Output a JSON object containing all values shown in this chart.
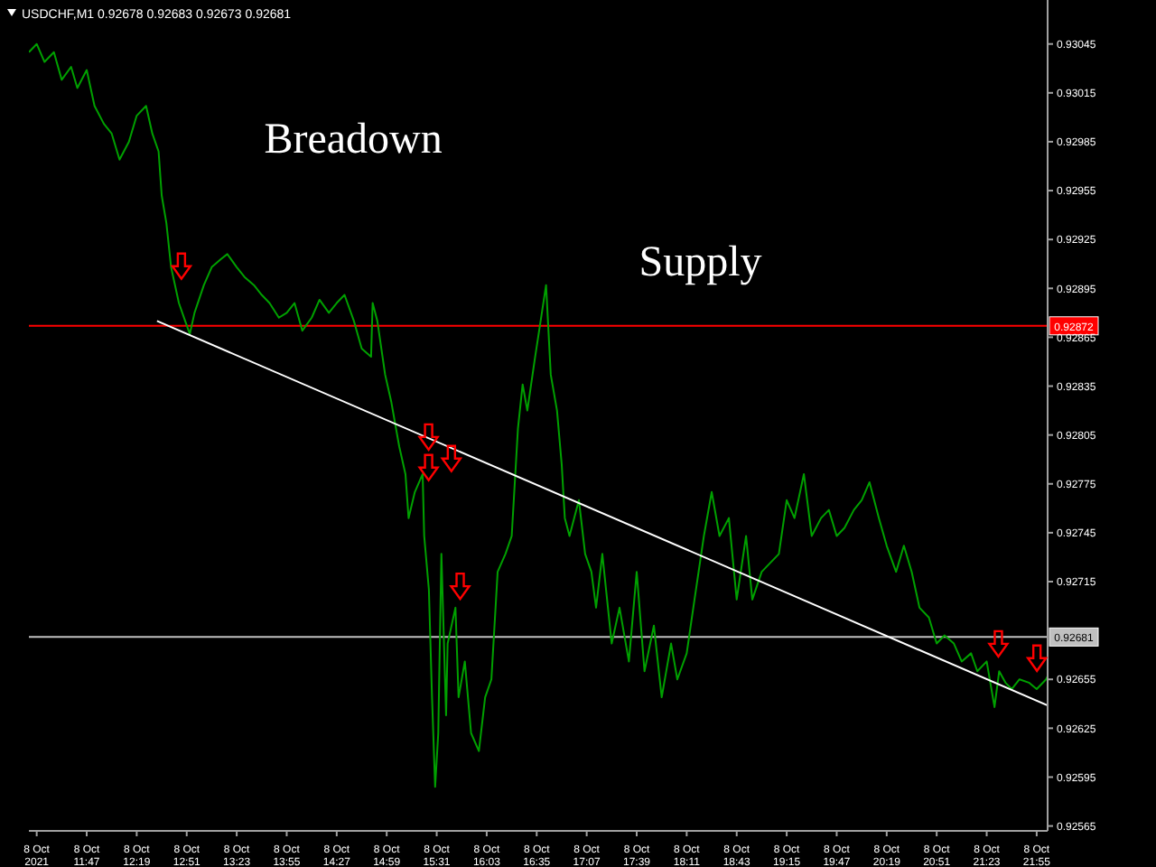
{
  "chart_data": {
    "type": "line",
    "title": "USDCHF,M1  0.92678 0.92683 0.92673 0.92681",
    "annotations": [
      "Breadown",
      "Supply"
    ],
    "xlim": [
      "2021-10-08T11:10",
      "2021-10-08T22:02"
    ],
    "xticks": [
      {
        "value": "2021-10-08T11:15",
        "label": "8 Oct 2021"
      },
      {
        "value": "2021-10-08T11:47",
        "label": "8 Oct 11:47"
      },
      {
        "value": "2021-10-08T12:19",
        "label": "8 Oct 12:19"
      },
      {
        "value": "2021-10-08T12:51",
        "label": "8 Oct 12:51"
      },
      {
        "value": "2021-10-08T13:23",
        "label": "8 Oct 13:23"
      },
      {
        "value": "2021-10-08T13:55",
        "label": "8 Oct 13:55"
      },
      {
        "value": "2021-10-08T14:27",
        "label": "8 Oct 14:27"
      },
      {
        "value": "2021-10-08T14:59",
        "label": "8 Oct 14:59"
      },
      {
        "value": "2021-10-08T15:31",
        "label": "8 Oct 15:31"
      },
      {
        "value": "2021-10-08T16:03",
        "label": "8 Oct 16:03"
      },
      {
        "value": "2021-10-08T16:35",
        "label": "8 Oct 16:35"
      },
      {
        "value": "2021-10-08T17:07",
        "label": "8 Oct 17:07"
      },
      {
        "value": "2021-10-08T17:39",
        "label": "8 Oct 17:39"
      },
      {
        "value": "2021-10-08T18:11",
        "label": "8 Oct 18:11"
      },
      {
        "value": "2021-10-08T18:43",
        "label": "8 Oct 18:43"
      },
      {
        "value": "2021-10-08T19:15",
        "label": "8 Oct 19:15"
      },
      {
        "value": "2021-10-08T19:47",
        "label": "8 Oct 19:47"
      },
      {
        "value": "2021-10-08T20:19",
        "label": "8 Oct 20:19"
      },
      {
        "value": "2021-10-08T20:51",
        "label": "8 Oct 20:51"
      },
      {
        "value": "2021-10-08T21:23",
        "label": "8 Oct 21:23"
      },
      {
        "value": "2021-10-08T21:55",
        "label": "8 Oct 21:55"
      }
    ],
    "ylim": [
      0.92562,
      0.93072
    ],
    "yticks": [
      0.93045,
      0.93015,
      0.92985,
      0.92955,
      0.92925,
      0.92895,
      0.92865,
      0.92835,
      0.92805,
      0.92775,
      0.92745,
      0.92715,
      0.92655,
      0.92625,
      0.92595,
      0.92565
    ],
    "grid": false,
    "legend": false,
    "marker": "none",
    "line_style": "solid",
    "ref_lines": [
      {
        "axis": "y",
        "value": 0.92872,
        "label": "0.92872",
        "color": "#ff0000"
      },
      {
        "axis": "y",
        "value": 0.92681,
        "label": "0.92681",
        "color": "#c0c0c0"
      }
    ],
    "series": [
      {
        "color": "#00a000",
        "x": [
          "2021-10-08T11:10",
          "2021-10-08T11:15",
          "2021-10-08T11:20",
          "2021-10-08T11:26",
          "2021-10-08T11:31",
          "2021-10-08T11:37",
          "2021-10-08T11:41",
          "2021-10-08T11:47",
          "2021-10-08T11:52",
          "2021-10-08T11:58",
          "2021-10-08T12:03",
          "2021-10-08T12:08",
          "2021-10-08T12:14",
          "2021-10-08T12:19",
          "2021-10-08T12:25",
          "2021-10-08T12:29",
          "2021-10-08T12:33",
          "2021-10-08T12:35",
          "2021-10-08T12:38",
          "2021-10-08T12:41",
          "2021-10-08T12:46",
          "2021-10-08T12:50",
          "2021-10-08T12:53",
          "2021-10-08T12:56",
          "2021-10-08T13:02",
          "2021-10-08T13:07",
          "2021-10-08T13:13",
          "2021-10-08T13:17",
          "2021-10-08T13:23",
          "2021-10-08T13:28",
          "2021-10-08T13:34",
          "2021-10-08T13:39",
          "2021-10-08T13:44",
          "2021-10-08T13:50",
          "2021-10-08T13:55",
          "2021-10-08T14:00",
          "2021-10-08T14:05",
          "2021-10-08T14:11",
          "2021-10-08T14:16",
          "2021-10-08T14:22",
          "2021-10-08T14:27",
          "2021-10-08T14:32",
          "2021-10-08T14:38",
          "2021-10-08T14:43",
          "2021-10-08T14:49",
          "2021-10-08T14:50",
          "2021-10-08T14:53",
          "2021-10-08T14:58",
          "2021-10-08T15:02",
          "2021-10-08T15:07",
          "2021-10-08T15:11",
          "2021-10-08T15:13",
          "2021-10-08T15:17",
          "2021-10-08T15:22",
          "2021-10-08T15:23",
          "2021-10-08T15:26",
          "2021-10-08T15:28",
          "2021-10-08T15:30",
          "2021-10-08T15:32",
          "2021-10-08T15:34",
          "2021-10-08T15:37",
          "2021-10-08T15:38",
          "2021-10-08T15:43",
          "2021-10-08T15:45",
          "2021-10-08T15:49",
          "2021-10-08T15:53",
          "2021-10-08T15:58",
          "2021-10-08T16:02",
          "2021-10-08T16:06",
          "2021-10-08T16:10",
          "2021-10-08T16:15",
          "2021-10-08T16:19",
          "2021-10-08T16:23",
          "2021-10-08T16:26",
          "2021-10-08T16:29",
          "2021-10-08T16:34",
          "2021-10-08T16:38",
          "2021-10-08T16:41",
          "2021-10-08T16:44",
          "2021-10-08T16:48",
          "2021-10-08T16:51",
          "2021-10-08T16:53",
          "2021-10-08T16:56",
          "2021-10-08T17:02",
          "2021-10-08T17:06",
          "2021-10-08T17:10",
          "2021-10-08T17:13",
          "2021-10-08T17:17",
          "2021-10-08T17:23",
          "2021-10-08T17:28",
          "2021-10-08T17:34",
          "2021-10-08T17:39",
          "2021-10-08T17:44",
          "2021-10-08T17:50",
          "2021-10-08T17:55",
          "2021-10-08T18:01",
          "2021-10-08T18:05",
          "2021-10-08T18:11",
          "2021-10-08T18:16",
          "2021-10-08T18:22",
          "2021-10-08T18:27",
          "2021-10-08T18:32",
          "2021-10-08T18:38",
          "2021-10-08T18:43",
          "2021-10-08T18:49",
          "2021-10-08T18:53",
          "2021-10-08T18:59",
          "2021-10-08T19:04",
          "2021-10-08T19:10",
          "2021-10-08T19:15",
          "2021-10-08T19:20",
          "2021-10-08T19:26",
          "2021-10-08T19:31",
          "2021-10-08T19:37",
          "2021-10-08T19:42",
          "2021-10-08T19:47",
          "2021-10-08T19:52",
          "2021-10-08T19:58",
          "2021-10-08T20:03",
          "2021-10-08T20:08",
          "2021-10-08T20:14",
          "2021-10-08T20:19",
          "2021-10-08T20:25",
          "2021-10-08T20:30",
          "2021-10-08T20:35",
          "2021-10-08T20:40",
          "2021-10-08T20:46",
          "2021-10-08T20:51",
          "2021-10-08T20:56",
          "2021-10-08T21:02",
          "2021-10-08T21:07",
          "2021-10-08T21:13",
          "2021-10-08T21:17",
          "2021-10-08T21:23",
          "2021-10-08T21:28",
          "2021-10-08T21:31",
          "2021-10-08T21:35",
          "2021-10-08T21:39",
          "2021-10-08T21:44",
          "2021-10-08T21:50",
          "2021-10-08T21:55",
          "2021-10-08T22:01",
          "2021-10-08T22:02"
        ],
        "values": [
          0.9304,
          0.93045,
          0.93034,
          0.9304,
          0.93023,
          0.93031,
          0.93018,
          0.93029,
          0.93007,
          0.92996,
          0.9299,
          0.92974,
          0.92985,
          0.93001,
          0.93007,
          0.9299,
          0.92979,
          0.92952,
          0.92935,
          0.92908,
          0.92886,
          0.92875,
          0.92867,
          0.9288,
          0.92897,
          0.92908,
          0.92913,
          0.92916,
          0.92908,
          0.92902,
          0.92897,
          0.92891,
          0.92886,
          0.92877,
          0.9288,
          0.92886,
          0.92869,
          0.92877,
          0.92888,
          0.9288,
          0.92886,
          0.92891,
          0.92875,
          0.92858,
          0.92853,
          0.92886,
          0.92875,
          0.92842,
          0.92825,
          0.92798,
          0.92781,
          0.92754,
          0.9277,
          0.92781,
          0.92743,
          0.9271,
          0.92644,
          0.92589,
          0.92622,
          0.92732,
          0.92633,
          0.92677,
          0.92699,
          0.92644,
          0.92666,
          0.92622,
          0.92611,
          0.92644,
          0.92655,
          0.92721,
          0.92732,
          0.92743,
          0.92809,
          0.92836,
          0.9282,
          0.92853,
          0.92878,
          0.92897,
          0.92842,
          0.9282,
          0.92787,
          0.92754,
          0.92743,
          0.92765,
          0.92732,
          0.92721,
          0.92699,
          0.92732,
          0.92677,
          0.92699,
          0.92666,
          0.92721,
          0.9266,
          0.92688,
          0.92644,
          0.92677,
          0.92655,
          0.92671,
          0.92704,
          0.92743,
          0.9277,
          0.92743,
          0.92754,
          0.92704,
          0.92743,
          0.92704,
          0.92721,
          0.92726,
          0.92732,
          0.92765,
          0.92754,
          0.92781,
          0.92743,
          0.92754,
          0.92759,
          0.92743,
          0.92748,
          0.92759,
          0.92765,
          0.92776,
          0.92754,
          0.92737,
          0.92721,
          0.92737,
          0.92721,
          0.92699,
          0.92693,
          0.92677,
          0.92682,
          0.92677,
          0.92666,
          0.92671,
          0.9266,
          0.92666,
          0.92638,
          0.9266,
          0.92653,
          0.92649,
          0.92655,
          0.92653,
          0.92649,
          0.92655,
          0.92657
        ]
      },
      {
        "color": "#ffffff",
        "x": [
          "2021-10-08T12:32",
          "2021-10-08T22:02"
        ],
        "values": [
          0.92875,
          0.92639
        ]
      }
    ]
  }
}
